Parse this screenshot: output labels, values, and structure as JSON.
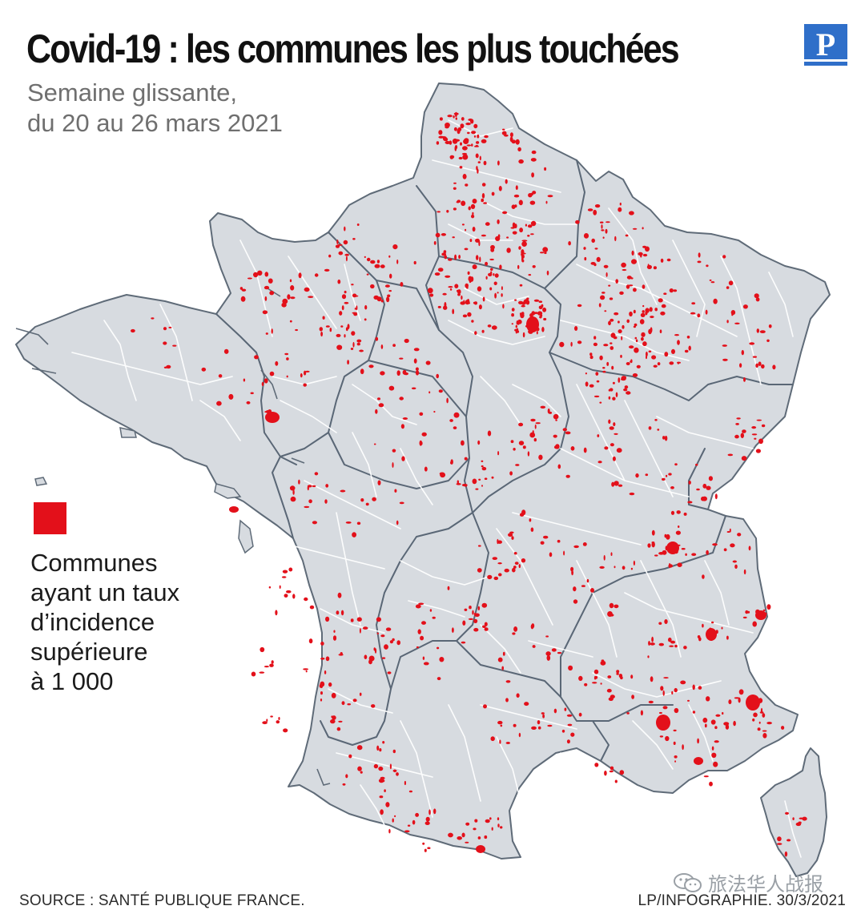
{
  "header": {
    "title": "Covid-19 : les communes les plus touchées",
    "subtitle_line1": "Semaine glissante,",
    "subtitle_line2": "du 20 au 26 mars 2021",
    "logo_letter": "P"
  },
  "legend": {
    "swatch_color": "#e3101a",
    "lines": [
      "Communes",
      "ayant un taux",
      "d’incidence",
      "supérieure",
      "à 1 000"
    ]
  },
  "footer": {
    "source": "SOURCE : SANTÉ PUBLIQUE FRANCE.",
    "credit": "LP/INFOGRAPHIE.  30/3/2021"
  },
  "watermark": {
    "text": "旅法华人战报",
    "icon": "wechat-icon"
  },
  "map": {
    "land_color": "#d7dbe0",
    "coast_color": "#5f6b78",
    "region_border_color": "#5a6776",
    "department_border_color": "#ffffff",
    "hotspot_color": "#e3101a",
    "logo_color": "#2f6fc9"
  }
}
